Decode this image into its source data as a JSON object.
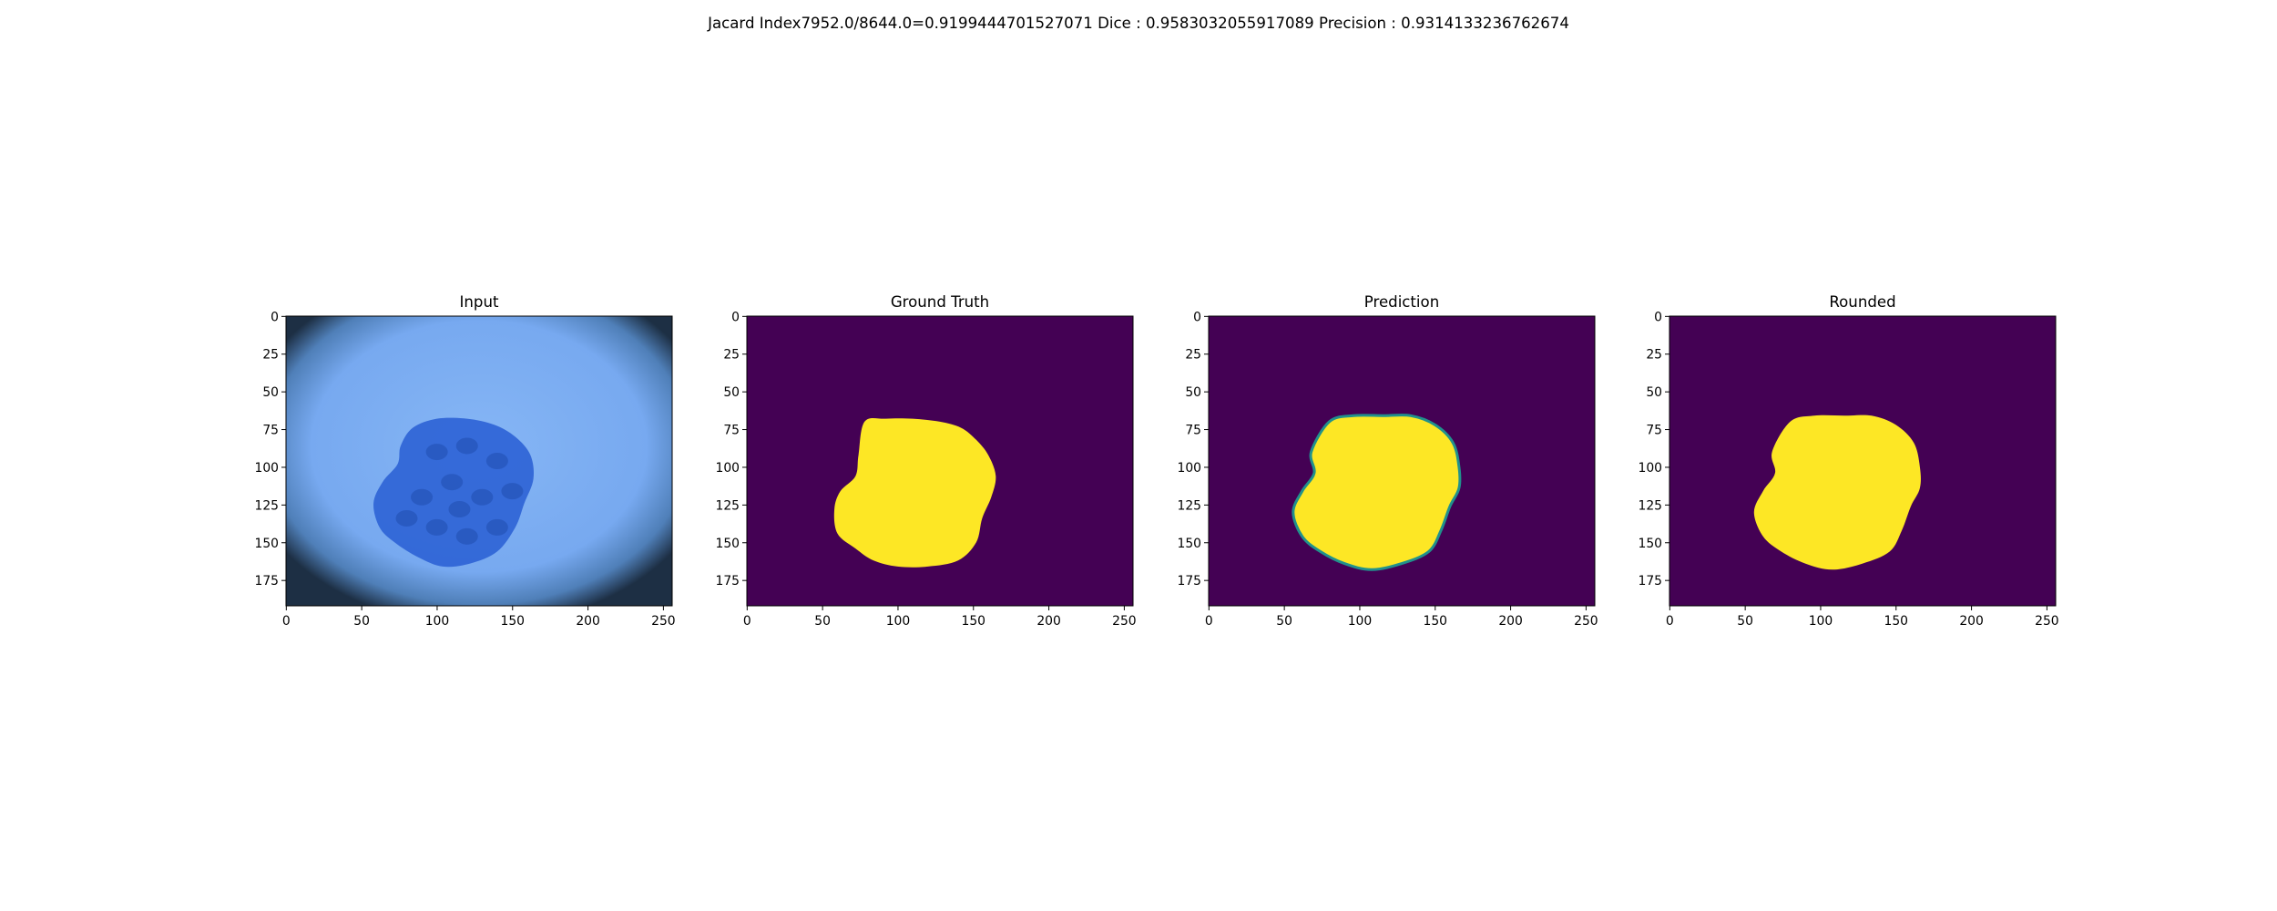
{
  "figure": {
    "suptitle": "Jacard Index7952.0/8644.0=0.9199444701527071 Dice : 0.9583032055917089 Precision : 0.9314133236762674"
  },
  "x_ticks": [
    "0",
    "50",
    "100",
    "150",
    "200",
    "250"
  ],
  "y_ticks": [
    "0",
    "25",
    "50",
    "75",
    "100",
    "125",
    "150",
    "175"
  ],
  "panels": [
    {
      "title": "Input"
    },
    {
      "title": "Ground Truth"
    },
    {
      "title": "Prediction"
    },
    {
      "title": "Rounded"
    }
  ],
  "colors": {
    "mask_background": "#440154",
    "mask_foreground": "#fde725",
    "prediction_edge": "#21918c",
    "input_background": "#77a9f0",
    "input_lesion": "#2f64d6"
  }
}
